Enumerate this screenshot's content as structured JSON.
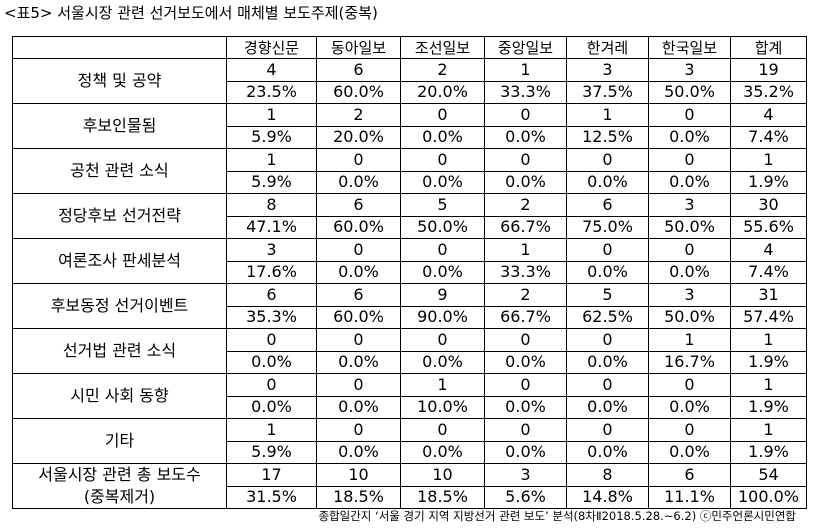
{
  "title": "<표5> 서울시장 관련 선거보도에서 매체별 보도주제(중복)",
  "table": {
    "columns": [
      "경향신문",
      "동아일보",
      "조선일보",
      "중앙일보",
      "한겨레",
      "한국일보",
      "합계"
    ],
    "rows": [
      {
        "label": "정책 및 공약",
        "counts": [
          4,
          6,
          2,
          1,
          3,
          3,
          19
        ],
        "percents": [
          "23.5%",
          "60.0%",
          "20.0%",
          "33.3%",
          "37.5%",
          "50.0%",
          "35.2%"
        ]
      },
      {
        "label": "후보인물됨",
        "counts": [
          1,
          2,
          0,
          0,
          1,
          0,
          4
        ],
        "percents": [
          "5.9%",
          "20.0%",
          "0.0%",
          "0.0%",
          "12.5%",
          "0.0%",
          "7.4%"
        ]
      },
      {
        "label": "공천 관련 소식",
        "counts": [
          1,
          0,
          0,
          0,
          0,
          0,
          1
        ],
        "percents": [
          "5.9%",
          "0.0%",
          "0.0%",
          "0.0%",
          "0.0%",
          "0.0%",
          "1.9%"
        ]
      },
      {
        "label": "정당후보 선거전략",
        "counts": [
          8,
          6,
          5,
          2,
          6,
          3,
          30
        ],
        "percents": [
          "47.1%",
          "60.0%",
          "50.0%",
          "66.7%",
          "75.0%",
          "50.0%",
          "55.6%"
        ]
      },
      {
        "label": "여론조사 판세분석",
        "counts": [
          3,
          0,
          0,
          1,
          0,
          0,
          4
        ],
        "percents": [
          "17.6%",
          "0.0%",
          "0.0%",
          "33.3%",
          "0.0%",
          "0.0%",
          "7.4%"
        ]
      },
      {
        "label": "후보동정 선거이벤트",
        "counts": [
          6,
          6,
          9,
          2,
          5,
          3,
          31
        ],
        "percents": [
          "35.3%",
          "60.0%",
          "90.0%",
          "66.7%",
          "62.5%",
          "50.0%",
          "57.4%"
        ]
      },
      {
        "label": "선거법 관련 소식",
        "counts": [
          0,
          0,
          0,
          0,
          0,
          1,
          1
        ],
        "percents": [
          "0.0%",
          "0.0%",
          "0.0%",
          "0.0%",
          "0.0%",
          "16.7%",
          "1.9%"
        ]
      },
      {
        "label": "시민 사회 동향",
        "counts": [
          0,
          0,
          1,
          0,
          0,
          0,
          1
        ],
        "percents": [
          "0.0%",
          "0.0%",
          "10.0%",
          "0.0%",
          "0.0%",
          "0.0%",
          "1.9%"
        ]
      },
      {
        "label": "기타",
        "counts": [
          1,
          0,
          0,
          0,
          0,
          0,
          1
        ],
        "percents": [
          "5.9%",
          "0.0%",
          "0.0%",
          "0.0%",
          "0.0%",
          "0.0%",
          "1.9%"
        ]
      },
      {
        "label": "서울시장 관련 총 보도수",
        "sublabel": "(중복제거)",
        "counts": [
          17,
          10,
          10,
          3,
          8,
          6,
          54
        ],
        "percents": [
          "31.5%",
          "18.5%",
          "18.5%",
          "5.6%",
          "14.8%",
          "11.1%",
          "100.0%"
        ]
      }
    ]
  },
  "footnote": "종합일간지 ‘서울 경기 지역 지방선거 관련 보도’ 분석(8차Ⅱ2018.5.28.~6.2) ⓒ민주언론시민연합"
}
